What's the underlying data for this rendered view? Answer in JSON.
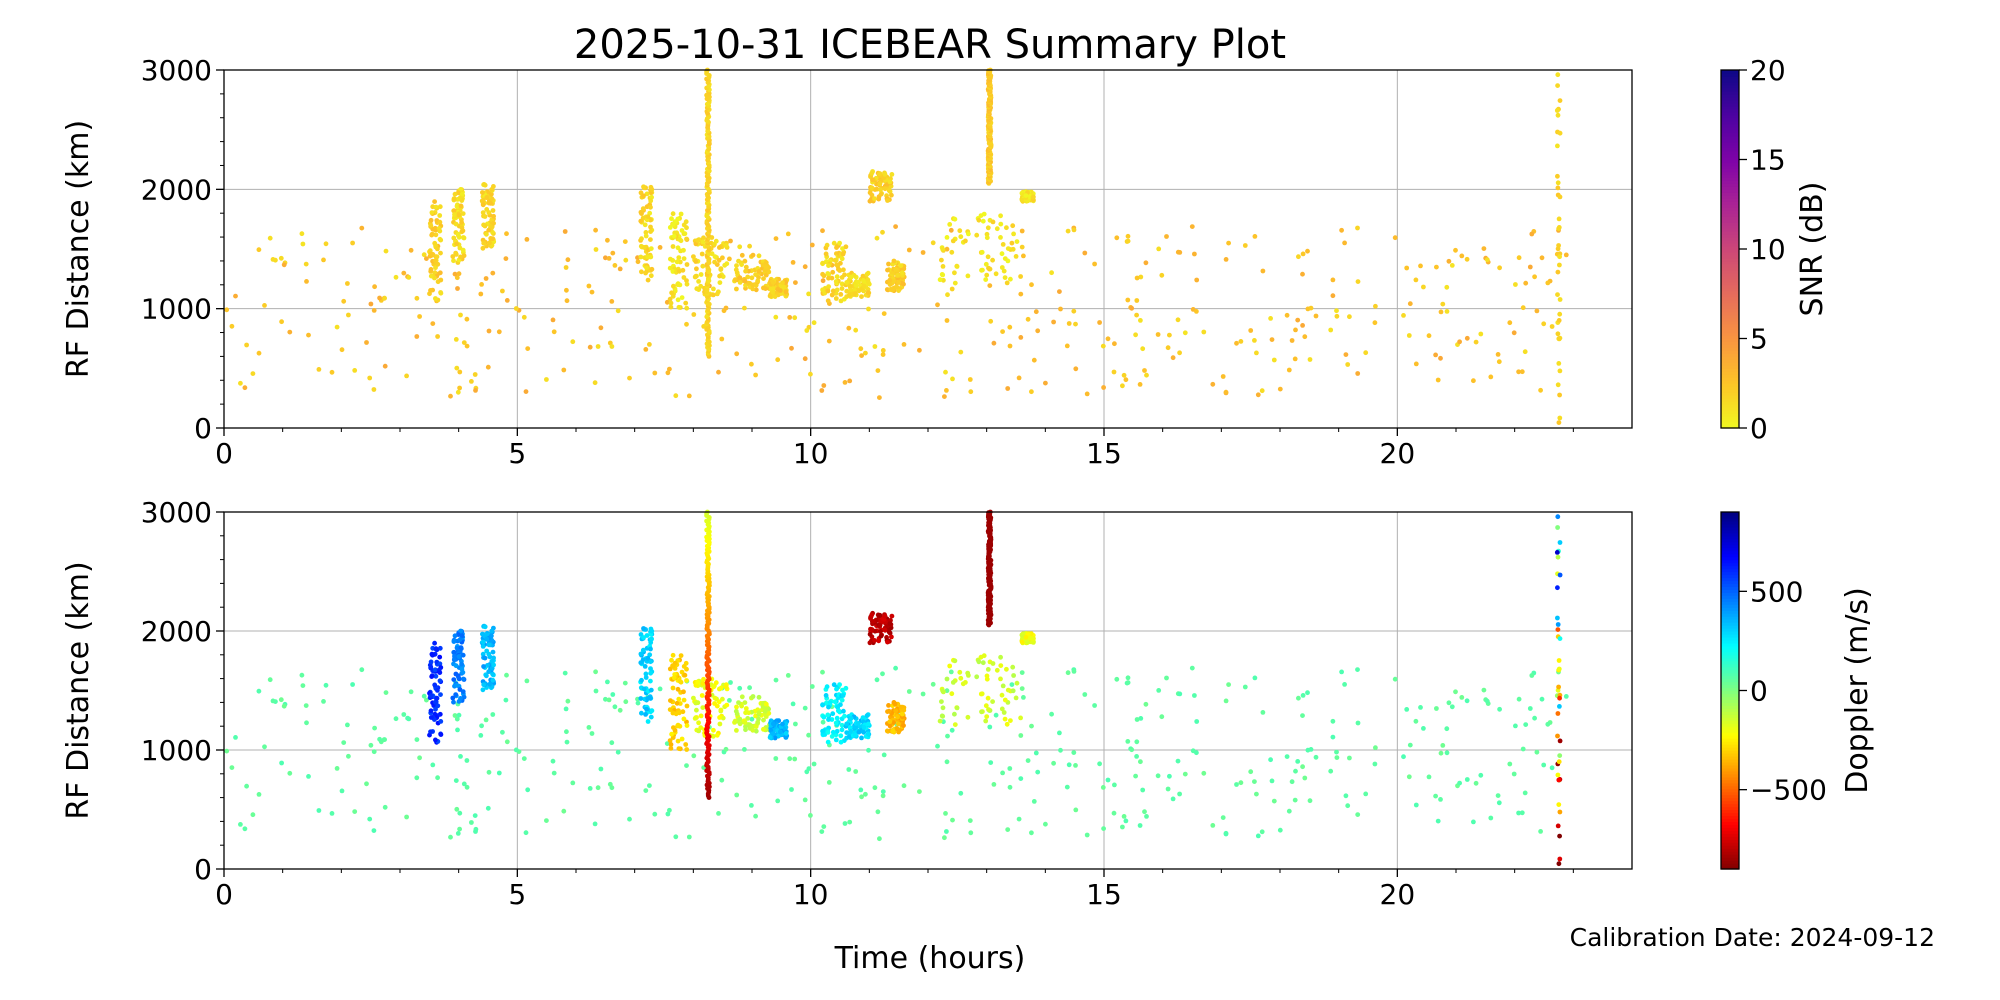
{
  "chart_data": {
    "type": "scatter",
    "title": "2025-10-31 ICEBEAR Summary Plot",
    "xlabel": "Time (hours)",
    "footnote": "Calibration Date: 2024-09-12",
    "xlim": [
      0,
      24
    ],
    "xticks": [
      0,
      5,
      10,
      15,
      20
    ],
    "grid": true,
    "panels": [
      {
        "ylabel": "RF Distance (km)",
        "ylim": [
          0,
          3000
        ],
        "yticks": [
          0,
          1000,
          2000,
          3000
        ],
        "colorbar": {
          "label": "SNR (dB)",
          "range": [
            0,
            20
          ],
          "ticks": [
            0,
            5,
            10,
            15,
            20
          ],
          "colormap": "plasma_r",
          "colors": [
            "#f0f921",
            "#fdc527",
            "#f89540",
            "#e66c5c",
            "#cc4778",
            "#aa2395",
            "#7e03a8",
            "#4c02a1",
            "#0d0887"
          ]
        },
        "point_color_note": "mostly 0-5 dB (yellow-orange)"
      },
      {
        "ylabel": "RF Distance (km)",
        "ylim": [
          0,
          3000
        ],
        "yticks": [
          0,
          1000,
          2000,
          3000
        ],
        "colorbar": {
          "label": "Doppler (m/s)",
          "range": [
            -900,
            900
          ],
          "ticks": [
            -500,
            0,
            500
          ],
          "colormap": "jet_r",
          "colors": [
            "#800000",
            "#ff0000",
            "#ff8000",
            "#ffff00",
            "#80ff80",
            "#00ffff",
            "#0080ff",
            "#0000ff",
            "#000080"
          ]
        }
      }
    ],
    "clusters": [
      {
        "t": [
          3.5,
          3.7
        ],
        "r": [
          1050,
          1900
        ],
        "snr": 2,
        "dop": 600
      },
      {
        "t": [
          3.9,
          4.1
        ],
        "r": [
          1400,
          2000
        ],
        "snr": 1.5,
        "dop": 450
      },
      {
        "t": [
          4.4,
          4.6
        ],
        "r": [
          1500,
          2050
        ],
        "snr": 1.5,
        "dop": 350
      },
      {
        "t": [
          7.1,
          7.3
        ],
        "r": [
          1200,
          2050
        ],
        "snr": 1.5,
        "dop": 300
      },
      {
        "t": [
          7.6,
          7.9
        ],
        "r": [
          1000,
          1800
        ],
        "snr": 1,
        "dop": -300
      },
      {
        "t": [
          8.0,
          8.6
        ],
        "r": [
          1100,
          1600
        ],
        "snr": 1.5,
        "dop": -200
      },
      {
        "t": [
          8.7,
          9.3
        ],
        "r": [
          1150,
          1450
        ],
        "snr": 2,
        "dop": -150
      },
      {
        "t": [
          9.3,
          9.6
        ],
        "r": [
          1100,
          1250
        ],
        "snr": 2,
        "dop": 350
      },
      {
        "t": [
          10.2,
          10.6
        ],
        "r": [
          1050,
          1550
        ],
        "snr": 1.5,
        "dop": 250
      },
      {
        "t": [
          10.6,
          11.0
        ],
        "r": [
          1100,
          1300
        ],
        "snr": 1.5,
        "dop": 300
      },
      {
        "t": [
          11.0,
          11.4
        ],
        "r": [
          1900,
          2150
        ],
        "snr": 2,
        "dop": -800
      },
      {
        "t": [
          11.3,
          11.6
        ],
        "r": [
          1150,
          1400
        ],
        "snr": 2,
        "dop": -350
      },
      {
        "t": [
          12.2,
          13.6
        ],
        "r": [
          1200,
          1800
        ],
        "snr": 1,
        "dop": -150
      },
      {
        "t": [
          13.6,
          13.8
        ],
        "r": [
          1900,
          1980
        ],
        "snr": 1,
        "dop": -200
      }
    ],
    "vertical_streaks": [
      {
        "t": 8.25,
        "r": [
          600,
          3000
        ],
        "snr": 1,
        "dop_top": -150,
        "dop_bottom": -850
      },
      {
        "t": 13.05,
        "r": [
          2050,
          3000
        ],
        "snr": 1.5,
        "dop_top": -850,
        "dop_bottom": -850
      },
      {
        "t": 22.75,
        "r": [
          0,
          3000
        ],
        "snr": 1,
        "dop_top": 400,
        "dop_bottom": -800,
        "sparse": true
      }
    ],
    "background_scatter": {
      "t": [
        0,
        23
      ],
      "r": [
        250,
        1700
      ],
      "snr": 2.5,
      "dop": 60,
      "count": 420
    }
  }
}
